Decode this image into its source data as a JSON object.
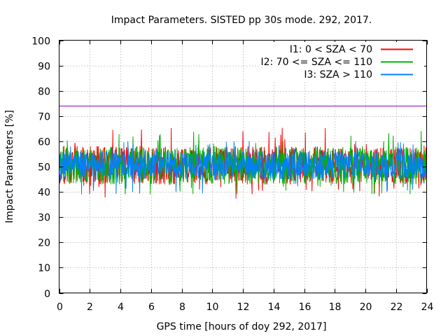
{
  "chart_data": {
    "type": "line",
    "title": "Impact Parameters. SISTED pp 30s mode. 292, 2017.",
    "xlabel": "GPS time [hours of doy 292, 2017]",
    "ylabel": "Impact Parameters [%]",
    "xlim": [
      0,
      24
    ],
    "ylim": [
      0,
      100
    ],
    "xticks": [
      "0",
      "2",
      "4",
      "6",
      "8",
      "10",
      "12",
      "14",
      "16",
      "18",
      "20",
      "22",
      "24"
    ],
    "yticks": [
      "0",
      "10",
      "20",
      "30",
      "40",
      "50",
      "60",
      "70",
      "80",
      "90",
      "100"
    ],
    "grid": true,
    "legend_position": "top-right",
    "reference_line": {
      "y": 74,
      "color": "#9400d3"
    },
    "series": [
      {
        "name": "I1: 0 < SZA < 70",
        "color": "#ff0000",
        "center": 50,
        "typical_min": 43,
        "typical_max": 58,
        "extreme_min": 37,
        "extreme_max": 66
      },
      {
        "name": "I2: 70 <= SZA <= 110",
        "color": "#00b000",
        "center": 50,
        "typical_min": 43,
        "typical_max": 58,
        "extreme_min": 39,
        "extreme_max": 64
      },
      {
        "name": "I3: SZA > 110",
        "color": "#0080ff",
        "center": 50,
        "typical_min": 45,
        "typical_max": 56,
        "extreme_min": 37,
        "extreme_max": 60
      }
    ]
  }
}
